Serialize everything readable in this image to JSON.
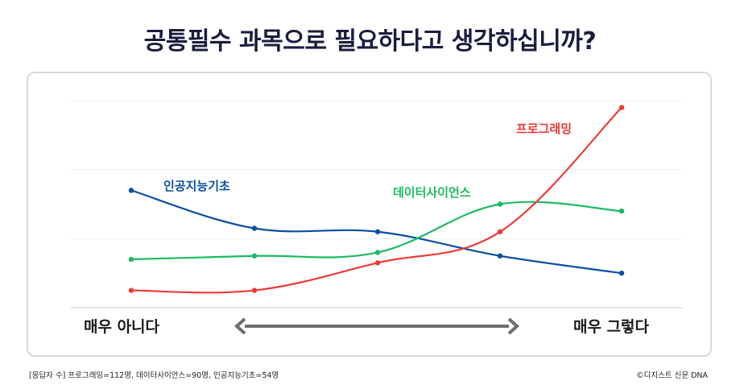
{
  "title": "공통필수 과목으로 필요하다고 생각하십니까?",
  "axis": {
    "left_label": "매우 아니다",
    "right_label": "매우 그렇다"
  },
  "footnote": "[응답자 수] 프로그래밍=112명, 데이터사이언스=90명, 인공지능기초=54명",
  "credit": "©디지스트 신문 DNA",
  "colors": {
    "프로그래밍": "#ee3b3b",
    "데이터사이언스": "#1cbb63",
    "인공지능기초": "#0a4fa3",
    "grid": "#eeeeee",
    "arrow": "#6e6e6e"
  },
  "chart_data": {
    "type": "line",
    "x": [
      1,
      2,
      3,
      4,
      5
    ],
    "ylim": [
      0,
      6
    ],
    "grid": true,
    "title": "공통필수 과목으로 필요하다고 생각하십니까?",
    "xlabel": "",
    "ylabel": "",
    "series": [
      {
        "name": "인공지능기초",
        "values": [
          3.4,
          2.3,
          2.2,
          1.5,
          1.0
        ]
      },
      {
        "name": "데이터사이언스",
        "values": [
          1.4,
          1.5,
          1.6,
          3.0,
          2.8
        ]
      },
      {
        "name": "프로그래밍",
        "values": [
          0.5,
          0.5,
          1.3,
          2.2,
          5.8
        ]
      }
    ]
  }
}
